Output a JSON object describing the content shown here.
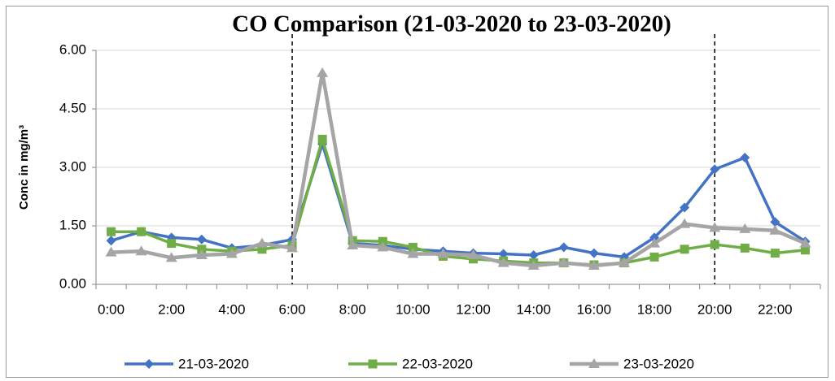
{
  "chart_data": {
    "type": "line",
    "title": "CO Comparison (21-03-2020 to 23-03-2020)",
    "y_label": "Conc in mg/m³",
    "categories": [
      "0:00",
      null,
      "2:00",
      null,
      "4:00",
      null,
      "6:00",
      null,
      "8:00",
      null,
      "10:00",
      null,
      "12:00",
      null,
      "14:00",
      null,
      "16:00",
      null,
      "18:00",
      null,
      "20:00",
      null,
      "22:00",
      null
    ],
    "series": [
      {
        "name": "21-03-2020",
        "color": "#4472c4",
        "marker": "diamond",
        "values": [
          1.12,
          1.35,
          1.2,
          1.15,
          0.93,
          1.0,
          1.15,
          3.6,
          1.05,
          1.0,
          0.9,
          0.85,
          0.8,
          0.78,
          0.75,
          0.95,
          0.8,
          0.7,
          1.2,
          1.97,
          2.95,
          3.25,
          1.6,
          1.1
        ]
      },
      {
        "name": "22-03-2020",
        "color": "#70ad47",
        "marker": "square",
        "values": [
          1.35,
          1.35,
          1.05,
          0.9,
          0.85,
          0.9,
          1.0,
          3.72,
          1.12,
          1.1,
          0.95,
          0.72,
          0.65,
          0.6,
          0.55,
          0.55,
          0.5,
          0.55,
          0.7,
          0.9,
          1.02,
          0.93,
          0.8,
          0.88
        ]
      },
      {
        "name": "23-03-2020",
        "color": "#a5a5a5",
        "marker": "triangle",
        "values": [
          0.82,
          0.85,
          0.68,
          0.75,
          0.78,
          1.05,
          0.93,
          5.42,
          1.0,
          0.95,
          0.78,
          0.78,
          0.75,
          0.55,
          0.48,
          0.55,
          0.48,
          0.55,
          1.05,
          1.55,
          1.45,
          1.42,
          1.38,
          1.05
        ]
      }
    ],
    "ylim": [
      0,
      6
    ],
    "yticks": [
      {
        "value": 0,
        "label": "0.00"
      },
      {
        "value": 1.5,
        "label": "1.50"
      },
      {
        "value": 3,
        "label": "3.00"
      },
      {
        "value": 4.5,
        "label": "4.50"
      },
      {
        "value": 6,
        "label": "6.00"
      }
    ],
    "grid": true,
    "legend": "bottom",
    "vlines": [
      6,
      20
    ]
  }
}
